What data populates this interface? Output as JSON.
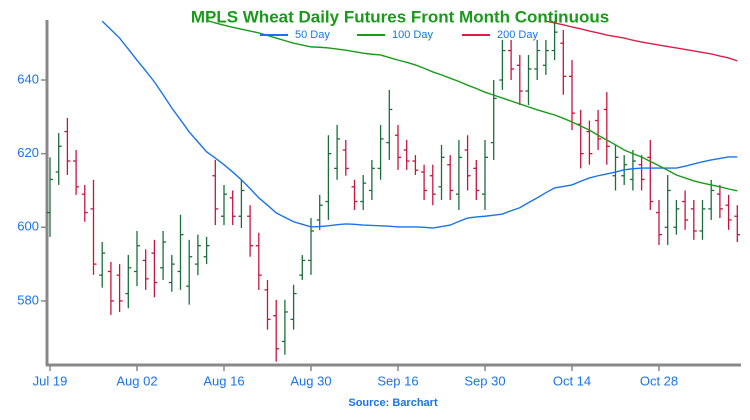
{
  "chart_data": {
    "type": "ohlc",
    "title": "MPLS Wheat Daily Futures Front Month Continuous",
    "source": "Source: Barchart",
    "categories": [
      "Jul 19",
      null,
      null,
      null,
      null,
      null,
      null,
      null,
      null,
      null,
      "Aug 02",
      null,
      null,
      null,
      null,
      null,
      null,
      null,
      null,
      null,
      "Aug 16",
      null,
      null,
      null,
      null,
      null,
      null,
      null,
      null,
      null,
      "Aug 30",
      null,
      null,
      null,
      null,
      null,
      null,
      null,
      null,
      null,
      "Sep 16",
      null,
      null,
      null,
      null,
      null,
      null,
      null,
      null,
      null,
      "Sep 30",
      null,
      null,
      null,
      null,
      null,
      null,
      null,
      null,
      null,
      "Oct 14",
      null,
      null,
      null,
      null,
      null,
      null,
      null,
      null,
      null,
      "Oct 28",
      null,
      null,
      null,
      null,
      null,
      null,
      null,
      null,
      null
    ],
    "ohlc": {
      "up_color": "#1b6e3b",
      "down_color": "#c8143c",
      "open": [
        604,
        615,
        626,
        618,
        609,
        605,
        587,
        588,
        587,
        582,
        588,
        591,
        593,
        589,
        585,
        588,
        584,
        590,
        592,
        614,
        603,
        608,
        603,
        603,
        595,
        583,
        576,
        569,
        575,
        587,
        591,
        602,
        607,
        616,
        621,
        611,
        607,
        610,
        616,
        623,
        625,
        621,
        618,
        615,
        614,
        611,
        617,
        609,
        621,
        616,
        609,
        623,
        640,
        648,
        644,
        637,
        643,
        644,
        648,
        650,
        641,
        628,
        626,
        629,
        632,
        614,
        614,
        613,
        617,
        619,
        604,
        600,
        600,
        607,
        605,
        599,
        605,
        609,
        606,
        603
      ],
      "high": [
        619,
        625.6,
        629.7,
        621,
        611.5,
        612.9,
        596,
        590.6,
        590,
        592.5,
        599,
        594,
        596.6,
        599,
        592.5,
        603.4,
        596.6,
        598,
        597.4,
        618.3,
        611.5,
        610,
        612.9,
        606,
        598.5,
        585.7,
        580.3,
        580.3,
        584.4,
        592.5,
        602.5,
        608.8,
        625,
        627.8,
        623.7,
        612.9,
        614.2,
        618.3,
        627.8,
        637.3,
        627.8,
        623.7,
        619.6,
        617,
        617,
        622.4,
        619.6,
        623.7,
        625,
        618.3,
        623.7,
        640,
        650.9,
        650.9,
        646.8,
        646.8,
        650.9,
        650.9,
        656,
        653.6,
        645.4,
        631.9,
        629,
        631.9,
        636.7,
        622.4,
        619.6,
        621,
        619.6,
        623.7,
        607.4,
        614.2,
        607.4,
        610,
        607.4,
        607.4,
        612.9,
        611.5,
        608.8,
        606
      ],
      "low": [
        597.4,
        611.5,
        614.2,
        608.8,
        601.5,
        587.1,
        583.6,
        576.2,
        577,
        578,
        584,
        583,
        581,
        585.7,
        582.5,
        583,
        579,
        587,
        590,
        600.6,
        600.6,
        600.6,
        599.8,
        592,
        583,
        572.2,
        563.5,
        565.4,
        572.2,
        585.7,
        587.1,
        599.3,
        602,
        612.9,
        614,
        604.7,
        604.7,
        607.4,
        612.9,
        618.3,
        615.6,
        615.6,
        614.2,
        607.4,
        606,
        607.4,
        607.4,
        604.7,
        610,
        607.4,
        604.7,
        618.3,
        637.3,
        640,
        633.2,
        633.2,
        640,
        641.4,
        645.4,
        636,
        626.4,
        616,
        617,
        621,
        617,
        610,
        611.5,
        610,
        610,
        604.7,
        595.2,
        595.2,
        598,
        599.3,
        596.6,
        596.6,
        602,
        602.5,
        599.3,
        596
      ],
      "close": [
        613,
        622,
        618,
        611,
        604,
        590,
        593,
        580,
        580,
        589,
        595,
        586,
        585,
        596,
        590,
        598,
        592,
        595,
        595,
        605,
        609,
        603,
        610,
        595,
        587,
        575,
        567,
        577,
        582,
        591,
        599,
        606,
        620,
        624,
        616,
        607,
        612,
        616,
        624,
        632,
        619,
        618,
        615.5,
        610,
        609,
        619,
        610,
        619,
        614,
        610,
        619,
        635,
        648,
        643,
        637,
        643,
        648,
        648,
        653,
        641,
        631,
        620,
        620,
        624,
        622,
        619,
        617,
        618,
        613,
        607,
        598,
        610,
        605,
        602,
        599,
        605,
        610,
        605,
        602,
        598
      ]
    },
    "series": [
      {
        "name": "50 Day",
        "color": "#1a73e8",
        "values": [
          null,
          null,
          null,
          null,
          null,
          null,
          656,
          653.7,
          651.4,
          648.4,
          645.4,
          642.5,
          639.5,
          636,
          632.4,
          629.2,
          625.9,
          623.2,
          620.5,
          618.8,
          617,
          615,
          612.9,
          610.5,
          608,
          606,
          603.9,
          602.7,
          601.5,
          600.8,
          600.1,
          600.2,
          600.4,
          600.7,
          600.9,
          600.8,
          600.6,
          600.5,
          600.4,
          600.3,
          600.1,
          600.1,
          600.1,
          600,
          599.8,
          600.2,
          600.6,
          601.6,
          602.5,
          602.8,
          603,
          603.3,
          603.6,
          604.5,
          605.3,
          606.7,
          608,
          609.4,
          610.7,
          611.1,
          611.5,
          612.5,
          613.4,
          614,
          614.5,
          615,
          615.6,
          615.9,
          616.1,
          616.1,
          616.1,
          616.1,
          616.1,
          616.6,
          617.2,
          617.8,
          618.3,
          618.7,
          619.1,
          619.1
        ]
      },
      {
        "name": "100 Day",
        "color": "#1a9a1a",
        "values": [
          null,
          null,
          null,
          null,
          null,
          null,
          null,
          null,
          null,
          null,
          null,
          null,
          null,
          null,
          null,
          null,
          null,
          null,
          656.2,
          655.5,
          654.9,
          654.3,
          653.8,
          653.3,
          652.8,
          652.1,
          651.4,
          650.7,
          650,
          649.5,
          649,
          648.9,
          648.7,
          648.4,
          648.1,
          647.7,
          647.3,
          647,
          646.8,
          646.1,
          645.4,
          644.8,
          644.1,
          643.2,
          642.2,
          641.4,
          640.5,
          639.6,
          638.6,
          637.7,
          636.7,
          635.9,
          635.1,
          634.3,
          633.5,
          632.7,
          631.9,
          631.2,
          630.5,
          629.6,
          628.6,
          627.5,
          626.4,
          625,
          623.7,
          622.4,
          621,
          620,
          619.1,
          617.9,
          616.7,
          615.5,
          614.2,
          613.4,
          612.6,
          612,
          611.5,
          611,
          610.4,
          609.9
        ]
      },
      {
        "name": "200 Day",
        "color": "#dc1e46",
        "values": [
          null,
          null,
          null,
          null,
          null,
          null,
          null,
          null,
          null,
          null,
          null,
          null,
          null,
          null,
          null,
          null,
          null,
          null,
          null,
          null,
          null,
          null,
          null,
          null,
          null,
          null,
          null,
          null,
          null,
          null,
          null,
          null,
          null,
          null,
          null,
          null,
          null,
          null,
          null,
          null,
          null,
          null,
          null,
          null,
          null,
          null,
          null,
          null,
          null,
          null,
          null,
          null,
          null,
          null,
          null,
          null,
          null,
          656,
          655.5,
          655,
          654.4,
          653.9,
          653.3,
          652.8,
          652.2,
          651.8,
          651.4,
          650.8,
          650.3,
          649.9,
          649.5,
          649.1,
          648.7,
          648.3,
          647.9,
          647.5,
          647.1,
          646.5,
          646,
          645.2
        ]
      }
    ],
    "ylim": [
      562.6,
      656.3
    ],
    "yticks": [
      580,
      600,
      620,
      640
    ],
    "legend": "top"
  }
}
